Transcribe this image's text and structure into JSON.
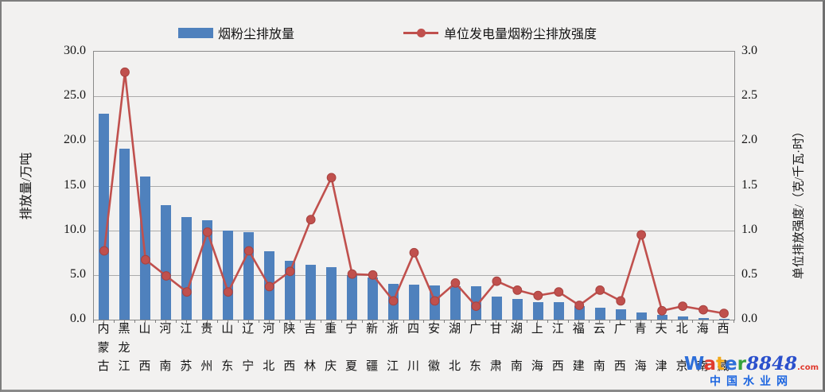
{
  "chart_data": {
    "type": "bar+line-combo",
    "categories": [
      "内蒙古",
      "黑龙江",
      "山西",
      "河南",
      "江苏",
      "贵州",
      "山东",
      "辽宁",
      "河北",
      "陕西",
      "吉林",
      "重庆",
      "宁夏",
      "新疆",
      "浙江",
      "四川",
      "安徽",
      "湖北",
      "广东",
      "甘肃",
      "湖南",
      "上海",
      "江西",
      "福建",
      "云南",
      "广西",
      "青海",
      "天津",
      "北京",
      "海南",
      "西藏"
    ],
    "series": [
      {
        "name": "烟粉尘排放量",
        "type": "bar",
        "axis": "left",
        "color": "#4f81bd",
        "values": [
          23.1,
          19.1,
          16.0,
          12.8,
          11.5,
          11.1,
          10.0,
          9.8,
          7.7,
          6.6,
          6.1,
          5.9,
          5.0,
          4.7,
          4.0,
          3.9,
          3.8,
          3.7,
          3.7,
          2.6,
          2.3,
          2.0,
          2.0,
          1.5,
          1.3,
          1.2,
          0.8,
          0.5,
          0.4,
          0.2,
          0.1
        ]
      },
      {
        "name": "单位发电量烟粉尘排放强度",
        "type": "line",
        "axis": "right",
        "color": "#c0504d",
        "values": [
          0.77,
          2.77,
          0.67,
          0.49,
          0.31,
          0.98,
          0.31,
          0.77,
          0.37,
          0.54,
          1.12,
          1.59,
          0.51,
          0.5,
          0.21,
          0.75,
          0.21,
          0.41,
          0.15,
          0.43,
          0.33,
          0.27,
          0.31,
          0.16,
          0.33,
          0.21,
          0.95,
          0.1,
          0.15,
          0.11,
          0.07
        ]
      }
    ],
    "left_axis": {
      "title": "排放量/万吨",
      "min": 0,
      "max": 30,
      "step": 5,
      "ticks": [
        "0.0",
        "5.0",
        "10.0",
        "15.0",
        "20.0",
        "25.0",
        "30.0"
      ]
    },
    "right_axis": {
      "title": "单位排放强度/（克/千瓦·时）",
      "min": 0,
      "max": 3,
      "step": 0.5,
      "ticks": [
        "0.0",
        "0.5",
        "1.0",
        "1.5",
        "2.0",
        "2.5",
        "3.0"
      ]
    },
    "grid": true,
    "legend_position": "top",
    "gridline_color": "#ababab"
  },
  "watermark": {
    "brand_letters": [
      {
        "ch": "W",
        "color": "#2e6fd9"
      },
      {
        "ch": "a",
        "color": "#e03a2e"
      },
      {
        "ch": "t",
        "color": "#f2a818"
      },
      {
        "ch": "e",
        "color": "#2e6fd9"
      },
      {
        "ch": "r",
        "color": "#35a23c"
      }
    ],
    "brand_number": "8848",
    "brand_number_color": "#2b50cc",
    "brand_tld": ".com",
    "brand_tld_color": "#e03a2e",
    "subtitle": "中国水业网",
    "subtitle_color": "#1d66e0"
  }
}
